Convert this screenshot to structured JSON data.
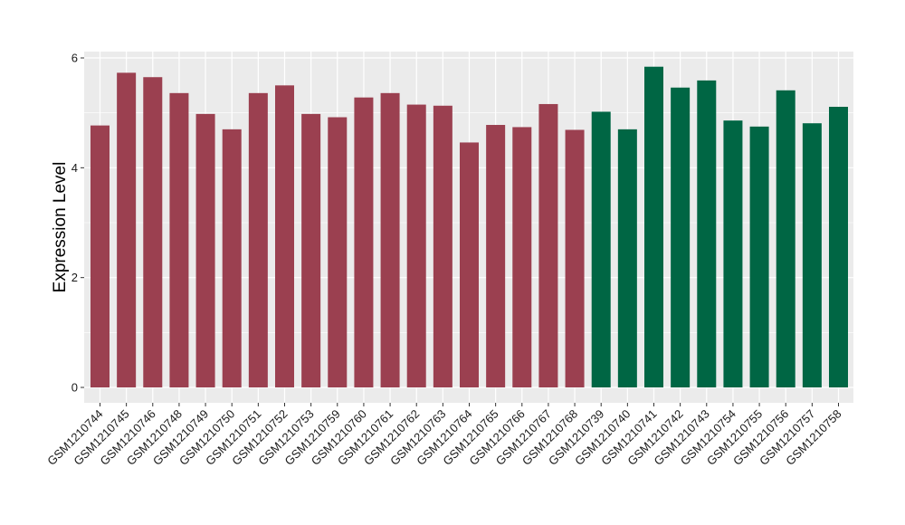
{
  "chart_data": {
    "type": "bar",
    "title": "",
    "xlabel": "",
    "ylabel": "Expression Level",
    "ylim": [
      0,
      6.1
    ],
    "yticks": [
      0,
      2,
      4,
      6
    ],
    "grid": true,
    "legend": "none",
    "categories": [
      "GSM1210744",
      "GSM1210745",
      "GSM1210746",
      "GSM1210748",
      "GSM1210749",
      "GSM1210750",
      "GSM1210751",
      "GSM1210752",
      "GSM1210753",
      "GSM1210759",
      "GSM1210760",
      "GSM1210761",
      "GSM1210762",
      "GSM1210763",
      "GSM1210764",
      "GSM1210765",
      "GSM1210766",
      "GSM1210767",
      "GSM1210768",
      "GSM1210739",
      "GSM1210740",
      "GSM1210741",
      "GSM1210742",
      "GSM1210743",
      "GSM1210754",
      "GSM1210755",
      "GSM1210756",
      "GSM1210757",
      "GSM1210758"
    ],
    "values": [
      4.77,
      5.73,
      5.65,
      5.36,
      4.98,
      4.7,
      5.36,
      5.5,
      4.98,
      4.92,
      5.28,
      5.36,
      5.15,
      5.13,
      4.46,
      4.78,
      4.74,
      5.16,
      4.69,
      5.02,
      4.7,
      5.84,
      5.46,
      5.59,
      4.86,
      4.75,
      5.41,
      4.81,
      5.11
    ],
    "bar_colors": [
      "#9B4050",
      "#9B4050",
      "#9B4050",
      "#9B4050",
      "#9B4050",
      "#9B4050",
      "#9B4050",
      "#9B4050",
      "#9B4050",
      "#9B4050",
      "#9B4050",
      "#9B4050",
      "#9B4050",
      "#9B4050",
      "#9B4050",
      "#9B4050",
      "#9B4050",
      "#9B4050",
      "#9B4050",
      "#006644",
      "#006644",
      "#006644",
      "#006644",
      "#006644",
      "#006644",
      "#006644",
      "#006644",
      "#006644",
      "#006644"
    ],
    "panel_color": "#EBEBEB",
    "grid_color": "#FFFFFF"
  }
}
